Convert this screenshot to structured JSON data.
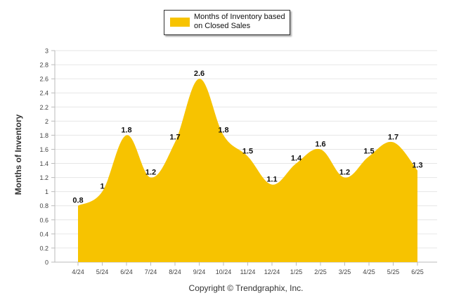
{
  "chart_data": {
    "type": "area",
    "categories": [
      "4/24",
      "5/24",
      "6/24",
      "7/24",
      "8/24",
      "9/24",
      "10/24",
      "11/24",
      "12/24",
      "1/25",
      "2/25",
      "3/25",
      "4/25",
      "5/25",
      "6/25"
    ],
    "series": [
      {
        "name": "Months of Inventory based on Closed Sales",
        "values": [
          0.8,
          1,
          1.8,
          1.2,
          1.7,
          2.6,
          1.8,
          1.5,
          1.1,
          1.4,
          1.6,
          1.2,
          1.5,
          1.7,
          1.3
        ],
        "labels": [
          "0.8",
          "1",
          "1.8",
          "1.2",
          "1.7",
          "2.6",
          "1.8",
          "1.5",
          "1.1",
          "1.4",
          "1.6",
          "1.2",
          "1.5",
          "1.7",
          "1.3"
        ],
        "color": "#F7C300"
      }
    ],
    "ylabel": "Months of Inventory",
    "xlabel": "",
    "ylim": [
      0,
      3
    ],
    "yticks": [
      "0",
      "0.2",
      "0.4",
      "0.6",
      "0.8",
      "1",
      "1.2",
      "1.4",
      "1.6",
      "1.8",
      "2",
      "2.2",
      "2.4",
      "2.6",
      "2.8",
      "3"
    ],
    "grid": true,
    "legend_position": "top-center"
  },
  "legend": {
    "label": "Months of Inventory based on Closed Sales"
  },
  "footer": {
    "copyright": "Copyright © Trendgraphix, Inc."
  },
  "colors": {
    "area": "#F7C300",
    "grid": "#E6E6E6",
    "axis": "#BBBBBB"
  }
}
